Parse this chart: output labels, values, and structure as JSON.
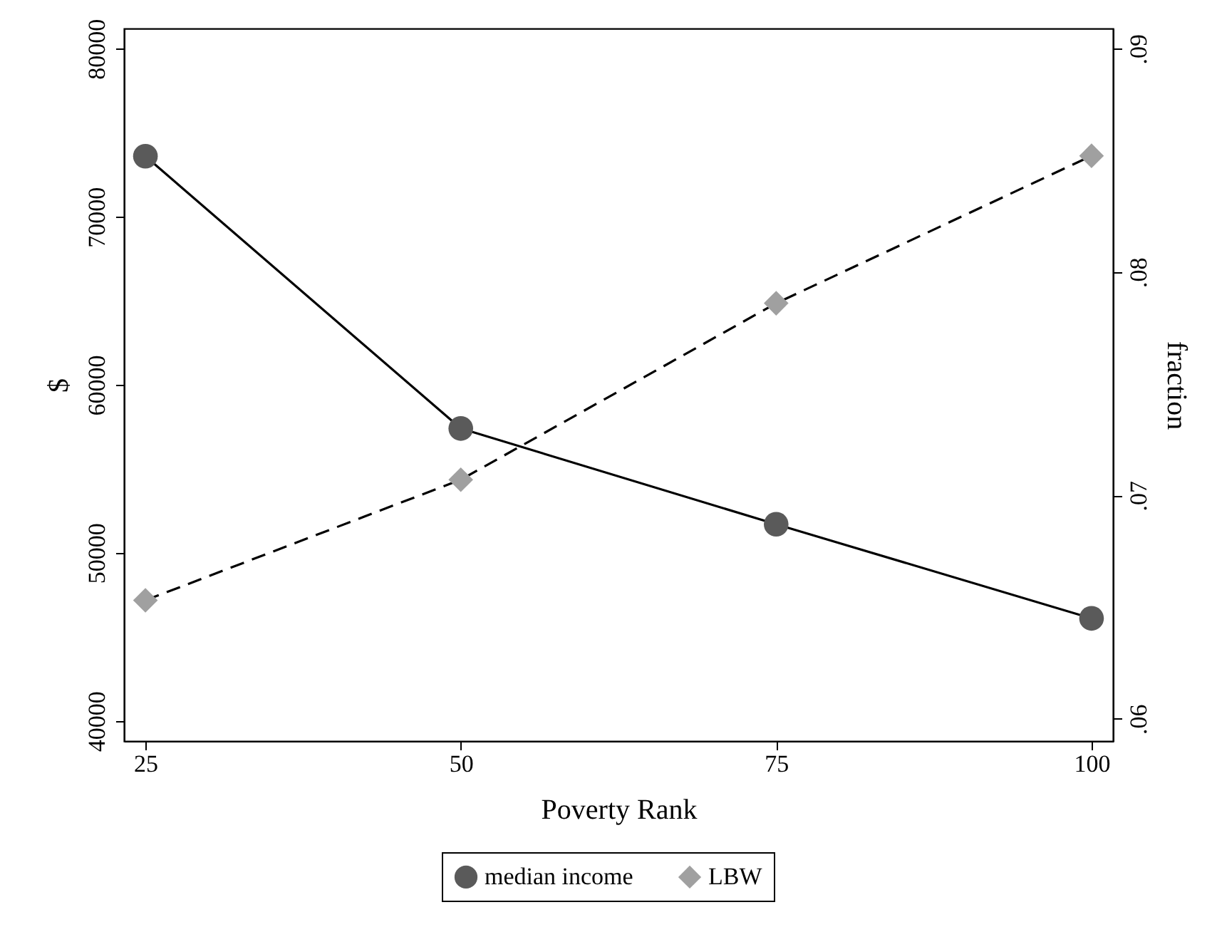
{
  "chart_data": {
    "type": "line",
    "xlabel": "Poverty Rank",
    "ylabel": "$",
    "y2label": "fraction",
    "x": [
      25,
      50,
      75,
      100
    ],
    "xlim": [
      23.3,
      101.7
    ],
    "xticks": [
      25,
      50,
      75,
      100
    ],
    "ylim": [
      38800,
      81200
    ],
    "yticks": [
      40000,
      50000,
      60000,
      70000,
      80000
    ],
    "y2lim": [
      0.059,
      0.0909
    ],
    "y2ticks": [
      {
        "value": 0.06,
        "label": ".06"
      },
      {
        "value": 0.07,
        "label": ".07"
      },
      {
        "value": 0.08,
        "label": ".08"
      },
      {
        "value": 0.09,
        "label": ".09"
      }
    ],
    "grid": false,
    "legend": "bottom",
    "series": [
      {
        "name": "median income",
        "color": "#5a5a5a",
        "marker": "circle",
        "line_style": "solid",
        "values": [
          73600,
          57400,
          51700,
          46100
        ]
      },
      {
        "name": "LBW",
        "color": "#a0a0a0",
        "marker": "diamond",
        "line_style": "dashed",
        "axis": "y2",
        "values": [
          0.0653,
          0.0707,
          0.0786,
          0.0852
        ]
      }
    ]
  }
}
